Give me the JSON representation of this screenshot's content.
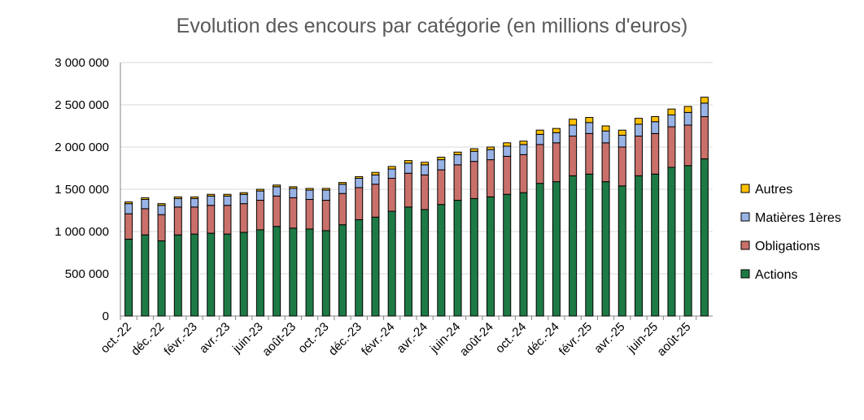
{
  "chart_data": {
    "type": "bar",
    "stacked": true,
    "title": "Evolution des encours par catégorie (en millions d'euros)",
    "xlabel": "",
    "ylabel": "",
    "ylim": [
      0,
      3000000
    ],
    "y_ticks": [
      0,
      500000,
      1000000,
      1500000,
      2000000,
      2500000,
      3000000
    ],
    "y_tick_labels": [
      "0",
      "500 000",
      "1 000 000",
      "1 500 000",
      "2 000 000",
      "2 500 000",
      "3 000 000"
    ],
    "grid": "horizontal",
    "legend_position": "right",
    "categories": [
      "oct.-22",
      "nov.-22",
      "déc.-22",
      "janv.-23",
      "févr.-23",
      "mars-23",
      "avr.-23",
      "mai-23",
      "juin-23",
      "juil.-23",
      "août-23",
      "sept.-23",
      "oct.-23",
      "nov.-23",
      "déc.-23",
      "janv.-24",
      "févr.-24",
      "mars-24",
      "avr.-24",
      "mai-24",
      "juin-24",
      "juil.-24",
      "août-24",
      "sept.-24",
      "oct.-24",
      "nov.-24",
      "déc.-24",
      "janv.-25",
      "févr.-25",
      "mars-25",
      "avr.-25",
      "mai-25",
      "juin-25",
      "juil.-25",
      "août-25",
      "sept.-25"
    ],
    "shown_x_labels": [
      "oct.-22",
      "déc.-22",
      "févr.-23",
      "avr.-23",
      "juin-23",
      "août-23",
      "oct.-23",
      "déc.-23",
      "févr.-24",
      "avr.-24",
      "juin-24",
      "août-24",
      "oct.-24",
      "déc.-24",
      "févr.-25",
      "avr.-25",
      "juin-25",
      "août-25"
    ],
    "series": [
      {
        "name": "Actions",
        "color": "#1e7a45",
        "values": [
          910000,
          960000,
          890000,
          960000,
          970000,
          980000,
          970000,
          990000,
          1020000,
          1060000,
          1040000,
          1030000,
          1010000,
          1080000,
          1140000,
          1170000,
          1240000,
          1290000,
          1260000,
          1320000,
          1370000,
          1390000,
          1410000,
          1440000,
          1460000,
          1570000,
          1590000,
          1660000,
          1680000,
          1590000,
          1540000,
          1660000,
          1680000,
          1760000,
          1780000,
          1860000
        ]
      },
      {
        "name": "Obligations",
        "color": "#c9706a",
        "values": [
          300000,
          310000,
          310000,
          330000,
          320000,
          330000,
          340000,
          340000,
          350000,
          360000,
          360000,
          350000,
          360000,
          370000,
          380000,
          390000,
          390000,
          400000,
          410000,
          410000,
          420000,
          440000,
          440000,
          450000,
          450000,
          460000,
          460000,
          470000,
          480000,
          460000,
          460000,
          470000,
          480000,
          480000,
          480000,
          500000
        ]
      },
      {
        "name": "Matières 1ères",
        "color": "#99b3e6",
        "values": [
          120000,
          110000,
          110000,
          100000,
          100000,
          110000,
          110000,
          110000,
          110000,
          110000,
          110000,
          110000,
          120000,
          110000,
          110000,
          110000,
          110000,
          120000,
          120000,
          120000,
          120000,
          120000,
          120000,
          120000,
          120000,
          120000,
          120000,
          130000,
          130000,
          140000,
          140000,
          140000,
          140000,
          140000,
          150000,
          160000
        ]
      },
      {
        "name": "Autres",
        "color": "#ffc000",
        "values": [
          20000,
          20000,
          20000,
          20000,
          20000,
          20000,
          20000,
          20000,
          20000,
          20000,
          20000,
          20000,
          20000,
          20000,
          20000,
          30000,
          30000,
          30000,
          30000,
          30000,
          30000,
          30000,
          30000,
          40000,
          40000,
          50000,
          50000,
          70000,
          60000,
          60000,
          60000,
          70000,
          60000,
          70000,
          70000,
          70000
        ]
      }
    ]
  }
}
